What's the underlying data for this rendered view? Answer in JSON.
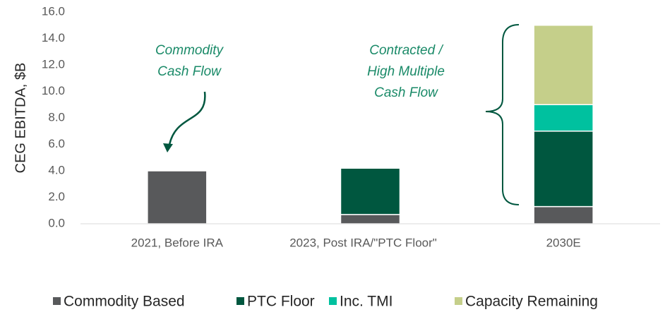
{
  "chart_data": {
    "type": "stacked_bar",
    "y_label": "CEG EBITDA, $B",
    "categories": [
      "2021, Before IRA",
      "2023, Post IRA/\"PTC Floor\"",
      "2030E"
    ],
    "series": [
      {
        "name": "Commodity Based",
        "color": "#58595b",
        "values": [
          4.0,
          0.7,
          1.3
        ]
      },
      {
        "name": "PTC Floor",
        "color": "#00573f",
        "values": [
          0,
          3.5,
          5.7
        ]
      },
      {
        "name": "Inc. TMI",
        "color": "#00c19f",
        "values": [
          0,
          0,
          2.0
        ]
      },
      {
        "name": "Capacity Remaining",
        "color": "#c5cf8a",
        "values": [
          0,
          0,
          6.0
        ]
      }
    ],
    "ylim": [
      0,
      16
    ],
    "yticks": [
      {
        "value": 0,
        "label": "0.0"
      },
      {
        "value": 2,
        "label": "2.0"
      },
      {
        "value": 4,
        "label": "4.0"
      },
      {
        "value": 6,
        "label": "6.0"
      },
      {
        "value": 8,
        "label": "8.0"
      },
      {
        "value": 10,
        "label": "10.0"
      },
      {
        "value": 12,
        "label": "12.0"
      },
      {
        "value": 14,
        "label": "14.0"
      },
      {
        "value": 16,
        "label": "16.0"
      }
    ],
    "annotations": [
      {
        "lines": [
          "Commodity",
          "Cash Flow"
        ]
      },
      {
        "lines": [
          "Contracted /",
          "High Multiple",
          "Cash Flow"
        ]
      }
    ],
    "legend": "bottom"
  }
}
